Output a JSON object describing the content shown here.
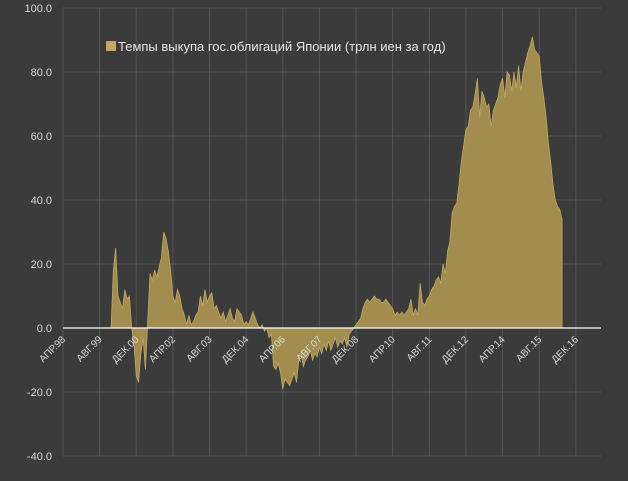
{
  "chart_data": {
    "type": "area",
    "title": "",
    "xlabel": "",
    "ylabel": "",
    "ylim": [
      -40,
      100
    ],
    "y_ticks": [
      "100.0",
      "80.0",
      "60.0",
      "40.0",
      "20.0",
      "0.0",
      "-20.0",
      "-40.0"
    ],
    "x_tick_labels": [
      "АПР.98",
      "АВГ.99",
      "ДЕК.00",
      "АПР.02",
      "АВГ.03",
      "ДЕК.04",
      "АПР.06",
      "АВГ.07",
      "ДЕК.08",
      "АПР.10",
      "АВГ.11",
      "ДЕК.12",
      "АПР.14",
      "АВГ.15",
      "ДЕК.16"
    ],
    "x_start": "1998-04",
    "x_end": "2017-11",
    "grid": true,
    "legend_position": "top-left",
    "colors": {
      "background": "#3b3b3b",
      "grid": "#555555",
      "fill": "#a8914f",
      "fill_highlight": "#c2a963",
      "text": "#d9d9d9"
    },
    "series": [
      {
        "name": "Темпы выкупа гос.облигаций Японии (трлн иен за год)",
        "points": [
          [
            "2000-01",
            0
          ],
          [
            "2000-02",
            18
          ],
          [
            "2000-03",
            25
          ],
          [
            "2000-04",
            10
          ],
          [
            "2000-05",
            8
          ],
          [
            "2000-06",
            6
          ],
          [
            "2000-07",
            12
          ],
          [
            "2000-08",
            9
          ],
          [
            "2000-09",
            10
          ],
          [
            "2000-10",
            0
          ],
          [
            "2000-11",
            -5
          ],
          [
            "2000-12",
            -15
          ],
          [
            "2001-01",
            -17
          ],
          [
            "2001-02",
            -8
          ],
          [
            "2001-03",
            -3
          ],
          [
            "2001-04",
            -13
          ],
          [
            "2001-05",
            2
          ],
          [
            "2001-06",
            17
          ],
          [
            "2001-07",
            15
          ],
          [
            "2001-08",
            18
          ],
          [
            "2001-09",
            16
          ],
          [
            "2001-10",
            19
          ],
          [
            "2001-11",
            22
          ],
          [
            "2001-12",
            30
          ],
          [
            "2002-01",
            28
          ],
          [
            "2002-02",
            24
          ],
          [
            "2002-03",
            18
          ],
          [
            "2002-04",
            10
          ],
          [
            "2002-05",
            8
          ],
          [
            "2002-06",
            12
          ],
          [
            "2002-07",
            10
          ],
          [
            "2002-08",
            6
          ],
          [
            "2002-09",
            4
          ],
          [
            "2002-10",
            1
          ],
          [
            "2002-11",
            4
          ],
          [
            "2002-12",
            1
          ],
          [
            "2003-01",
            2
          ],
          [
            "2003-02",
            4
          ],
          [
            "2003-03",
            5
          ],
          [
            "2003-04",
            10
          ],
          [
            "2003-05",
            7
          ],
          [
            "2003-06",
            12
          ],
          [
            "2003-07",
            8
          ],
          [
            "2003-08",
            10
          ],
          [
            "2003-09",
            11
          ],
          [
            "2003-10",
            6
          ],
          [
            "2003-11",
            7
          ],
          [
            "2003-12",
            5
          ],
          [
            "2004-01",
            3
          ],
          [
            "2004-02",
            5
          ],
          [
            "2004-03",
            2
          ],
          [
            "2004-04",
            4
          ],
          [
            "2004-05",
            6
          ],
          [
            "2004-06",
            3
          ],
          [
            "2004-07",
            2
          ],
          [
            "2004-08",
            6
          ],
          [
            "2004-09",
            5
          ],
          [
            "2004-10",
            4
          ],
          [
            "2004-11",
            1
          ],
          [
            "2004-12",
            2
          ],
          [
            "2005-01",
            1
          ],
          [
            "2005-02",
            3
          ],
          [
            "2005-03",
            5
          ],
          [
            "2005-04",
            3
          ],
          [
            "2005-05",
            1
          ],
          [
            "2005-06",
            0
          ],
          [
            "2005-07",
            1
          ],
          [
            "2005-08",
            -1
          ],
          [
            "2005-09",
            0
          ],
          [
            "2005-10",
            -3
          ],
          [
            "2005-11",
            -2
          ],
          [
            "2005-12",
            -12
          ],
          [
            "2006-01",
            -13
          ],
          [
            "2006-02",
            -11
          ],
          [
            "2006-03",
            -14
          ],
          [
            "2006-04",
            -19
          ],
          [
            "2006-05",
            -16
          ],
          [
            "2006-06",
            -17
          ],
          [
            "2006-07",
            -18
          ],
          [
            "2006-08",
            -16
          ],
          [
            "2006-09",
            -14
          ],
          [
            "2006-10",
            -17
          ],
          [
            "2006-11",
            -10
          ],
          [
            "2006-12",
            -8
          ],
          [
            "2007-01",
            -12
          ],
          [
            "2007-02",
            -10
          ],
          [
            "2007-03",
            -9
          ],
          [
            "2007-04",
            -7
          ],
          [
            "2007-05",
            -10
          ],
          [
            "2007-06",
            -8
          ],
          [
            "2007-07",
            -9
          ],
          [
            "2007-08",
            -6
          ],
          [
            "2007-09",
            -8
          ],
          [
            "2007-10",
            -5
          ],
          [
            "2007-11",
            -7
          ],
          [
            "2007-12",
            -4
          ],
          [
            "2008-01",
            -7
          ],
          [
            "2008-02",
            -5
          ],
          [
            "2008-03",
            -3
          ],
          [
            "2008-04",
            -6
          ],
          [
            "2008-05",
            -4
          ],
          [
            "2008-06",
            -5
          ],
          [
            "2008-07",
            -3
          ],
          [
            "2008-08",
            -6
          ],
          [
            "2008-09",
            -2
          ],
          [
            "2008-10",
            -1
          ],
          [
            "2008-11",
            0
          ],
          [
            "2008-12",
            1
          ],
          [
            "2009-01",
            2
          ],
          [
            "2009-02",
            3
          ],
          [
            "2009-03",
            6
          ],
          [
            "2009-04",
            8
          ],
          [
            "2009-05",
            9
          ],
          [
            "2009-06",
            8
          ],
          [
            "2009-07",
            9
          ],
          [
            "2009-08",
            10
          ],
          [
            "2009-09",
            9
          ],
          [
            "2009-10",
            9
          ],
          [
            "2009-11",
            8
          ],
          [
            "2009-12",
            8
          ],
          [
            "2010-01",
            9
          ],
          [
            "2010-02",
            8
          ],
          [
            "2010-03",
            7
          ],
          [
            "2010-04",
            6
          ],
          [
            "2010-05",
            4
          ],
          [
            "2010-06",
            5
          ],
          [
            "2010-07",
            4
          ],
          [
            "2010-08",
            5
          ],
          [
            "2010-09",
            4
          ],
          [
            "2010-10",
            5
          ],
          [
            "2010-11",
            6
          ],
          [
            "2010-12",
            9
          ],
          [
            "2011-01",
            4
          ],
          [
            "2011-02",
            6
          ],
          [
            "2011-03",
            4
          ],
          [
            "2011-04",
            14
          ],
          [
            "2011-05",
            8
          ],
          [
            "2011-06",
            7
          ],
          [
            "2011-07",
            9
          ],
          [
            "2011-08",
            10
          ],
          [
            "2011-09",
            12
          ],
          [
            "2011-10",
            13
          ],
          [
            "2011-11",
            15
          ],
          [
            "2011-12",
            16
          ],
          [
            "2012-01",
            14
          ],
          [
            "2012-02",
            20
          ],
          [
            "2012-03",
            17
          ],
          [
            "2012-04",
            24
          ],
          [
            "2012-05",
            27
          ],
          [
            "2012-06",
            36
          ],
          [
            "2012-07",
            38
          ],
          [
            "2012-08",
            39
          ],
          [
            "2012-09",
            45
          ],
          [
            "2012-10",
            52
          ],
          [
            "2012-11",
            57
          ],
          [
            "2012-12",
            62
          ],
          [
            "2013-01",
            63
          ],
          [
            "2013-02",
            68
          ],
          [
            "2013-03",
            69
          ],
          [
            "2013-04",
            73
          ],
          [
            "2013-05",
            78
          ],
          [
            "2013-06",
            66
          ],
          [
            "2013-07",
            74
          ],
          [
            "2013-08",
            72
          ],
          [
            "2013-09",
            69
          ],
          [
            "2013-10",
            70
          ],
          [
            "2013-11",
            63
          ],
          [
            "2013-12",
            68
          ],
          [
            "2014-01",
            70
          ],
          [
            "2014-02",
            72
          ],
          [
            "2014-03",
            76
          ],
          [
            "2014-04",
            78
          ],
          [
            "2014-05",
            72
          ],
          [
            "2014-06",
            80
          ],
          [
            "2014-07",
            79
          ],
          [
            "2014-08",
            74
          ],
          [
            "2014-09",
            80
          ],
          [
            "2014-10",
            75
          ],
          [
            "2014-11",
            82
          ],
          [
            "2014-12",
            74
          ],
          [
            "2015-01",
            80
          ],
          [
            "2015-02",
            83
          ],
          [
            "2015-03",
            86
          ],
          [
            "2015-04",
            88
          ],
          [
            "2015-05",
            91
          ],
          [
            "2015-06",
            87
          ],
          [
            "2015-07",
            86
          ],
          [
            "2015-08",
            85
          ],
          [
            "2015-09",
            77
          ],
          [
            "2015-10",
            72
          ],
          [
            "2015-11",
            66
          ],
          [
            "2015-12",
            58
          ],
          [
            "2016-01",
            52
          ],
          [
            "2016-02",
            45
          ],
          [
            "2016-03",
            40
          ],
          [
            "2016-04",
            38
          ],
          [
            "2016-05",
            37
          ],
          [
            "2016-06",
            34
          ]
        ]
      }
    ]
  }
}
